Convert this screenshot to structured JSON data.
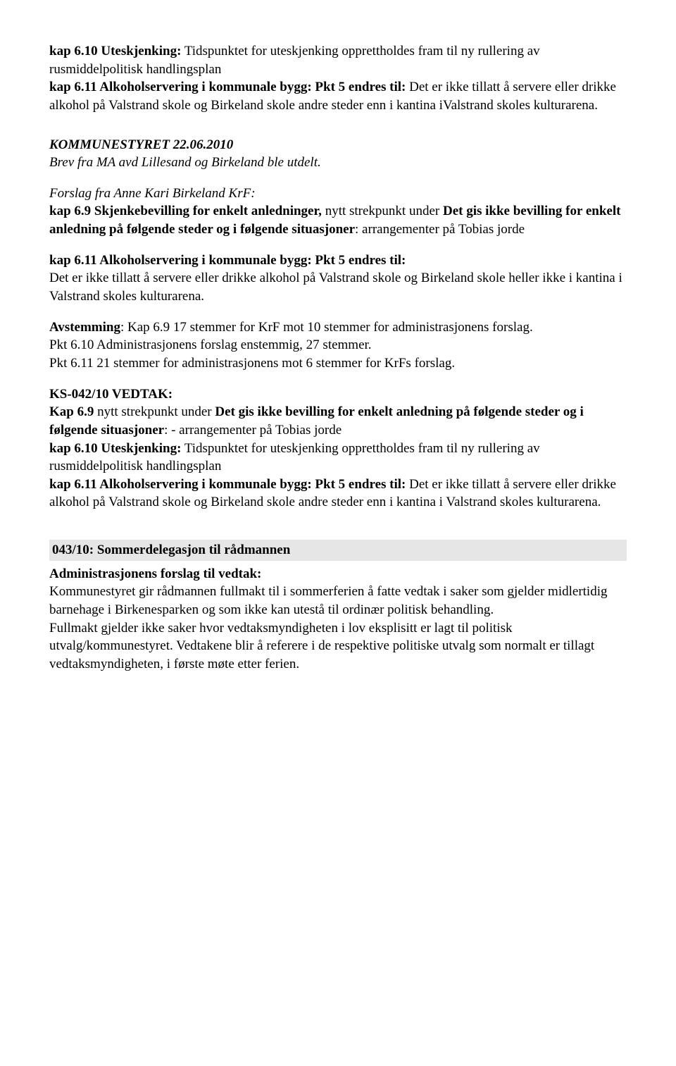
{
  "p1": {
    "lead": "kap 6.10 Uteskjenking:",
    "text": " Tidspunktet for uteskjenking opprettholdes fram til ny rullering av rusmiddelpolitisk handlingsplan"
  },
  "p2": {
    "lead": "kap 6.11 Alkoholservering i kommunale bygg: Pkt 5 endres til:",
    "text": " Det er ikke tillatt å servere eller drikke alkohol på Valstrand skole og Birkeland skole andre steder enn i kantina iValstrand skoles kulturarena."
  },
  "p3": {
    "line1": "KOMMUNESTYRET 22.06.2010",
    "line2": "Brev fra MA avd Lillesand og Birkeland ble utdelt."
  },
  "p4": "Forslag fra Anne Kari Birkeland KrF:",
  "p5": {
    "lead": "kap 6.9 Skjenkebevilling for enkelt anledninger,",
    "mid": " nytt strekpunkt under ",
    "bold2": "Det gis ikke bevilling for enkelt anledning på følgende steder og i følgende situasjoner",
    "tail": ": arrangementer på Tobias jorde"
  },
  "p6": {
    "lead": "kap 6.11 Alkoholservering i kommunale bygg: Pkt 5 endres til:",
    "text": "Det er ikke tillatt å servere eller drikke alkohol på Valstrand skole og Birkeland skole heller ikke i kantina i Valstrand skoles kulturarena."
  },
  "p7": {
    "lead": "Avstemming",
    "text": ": Kap 6.9  17 stemmer for KrF mot 10 stemmer for administrasjonens forslag."
  },
  "p8": "Pkt 6.10  Administrasjonens forslag  enstemmig, 27 stemmer.",
  "p9": "Pkt 6.11  21 stemmer for administrasjonens mot 6 stemmer for KrFs forslag.",
  "p10": "KS-042/10 VEDTAK:",
  "p11": {
    "lead": "Kap 6.9",
    "mid": " nytt strekpunkt under ",
    "bold2": "Det gis ikke bevilling for enkelt anledning på følgende steder og i følgende situasjoner",
    "tail": ": -  arrangementer på Tobias jorde"
  },
  "p12": {
    "lead": "kap 6.10 Uteskjenking:",
    "text": " Tidspunktet for uteskjenking opprettholdes fram til ny rullering av rusmiddelpolitisk handlingsplan"
  },
  "p13": {
    "lead": "kap 6.11 Alkoholservering i kommunale bygg: Pkt 5 endres til:",
    "text": " Det er ikke tillatt å servere eller drikke alkohol på Valstrand skole og Birkeland skole andre steder enn i kantina i Valstrand skoles kulturarena."
  },
  "section_hdr": "043/10: Sommerdelegasjon til rådmannen",
  "p14": "Administrasjonens forslag til vedtak:",
  "p15": "Kommunestyret gir rådmannen fullmakt til i sommerferien å fatte vedtak i saker som gjelder midlertidig barnehage i Birkenesparken og som ikke kan utestå til ordinær politisk behandling.",
  "p16": "Fullmakt gjelder ikke saker hvor vedtaksmyndigheten i lov eksplisitt er lagt til politisk utvalg/kommunestyret. Vedtakene blir å referere i de respektive politiske utvalg som normalt er tillagt vedtaksmyndigheten, i første møte etter ferien."
}
